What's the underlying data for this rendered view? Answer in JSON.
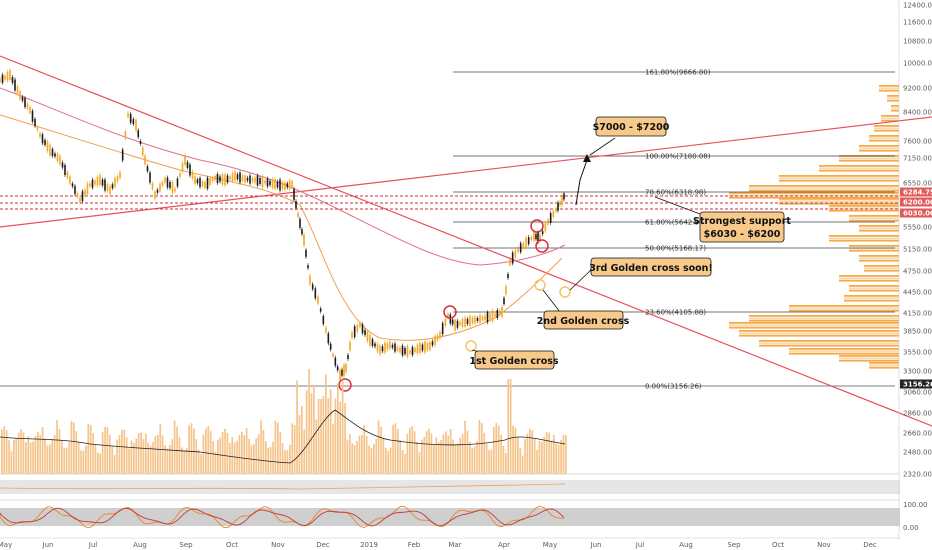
{
  "chart_data": {
    "type": "candlestick",
    "price_axis_ticks": [
      "12400.00",
      "11600.00",
      "10800.00",
      "10000.00",
      "9200.00",
      "8400.00",
      "7600.00",
      "7150.00",
      "6550.00",
      "5550.00",
      "5150.00",
      "4750.00",
      "4450.00",
      "4150.00",
      "3850.00",
      "3550.00",
      "3300.00",
      "3060.00",
      "2860.00",
      "2660.00",
      "2480.00",
      "2320.00"
    ],
    "price_badges": [
      {
        "label": "6284.75",
        "value": 6284.75,
        "color": "#e05a5a"
      },
      {
        "label": "6200.00",
        "value": 6200,
        "color": "#e05a5a"
      },
      {
        "label": "6030.00",
        "value": 6030,
        "color": "#e05a5a"
      },
      {
        "label": "3156.26",
        "value": 3156.26,
        "color": "#222222"
      }
    ],
    "time_axis_labels": [
      "May",
      "Jun",
      "Jul",
      "Aug",
      "Sep",
      "Oct",
      "Nov",
      "Dec",
      "2019",
      "Feb",
      "Mar",
      "Apr",
      "May",
      "Jun",
      "Jul",
      "Aug",
      "Sep",
      "Oct",
      "Nov",
      "Dec"
    ],
    "fib_levels": [
      {
        "label": "161.80%(9666.80)",
        "value": 9666.8
      },
      {
        "label": "100.00%(7180.08)",
        "value": 7180.08
      },
      {
        "label": "78.60%(6318.98)",
        "value": 6318.98
      },
      {
        "label": "61.80%(5642.98)",
        "value": 5642.98
      },
      {
        "label": "50.00%(5168.17)",
        "value": 5168.17
      },
      {
        "label": "23.60%(4105.88)",
        "value": 4105.88
      },
      {
        "label": "0.00%(3156.26)",
        "value": 3156.26
      }
    ],
    "annotations": [
      {
        "text": "$7000 - $7200"
      },
      {
        "text": "Strongest support",
        "text2": "$6030 - $6200"
      },
      {
        "text": "3rd Golden cross soon!"
      },
      {
        "text": "2nd Golden cross"
      },
      {
        "text": "1st Golden cross"
      }
    ],
    "rsi_ticks": [
      "100.00",
      "0.00"
    ],
    "colors": {
      "up": "#f5a623",
      "down": "#1a1a1a",
      "trend": "#e8505b",
      "ma_fast": "#f0a050",
      "ma_slow": "#e07090",
      "volume": "#f6c48a",
      "vprofile": "#f6a640"
    }
  }
}
